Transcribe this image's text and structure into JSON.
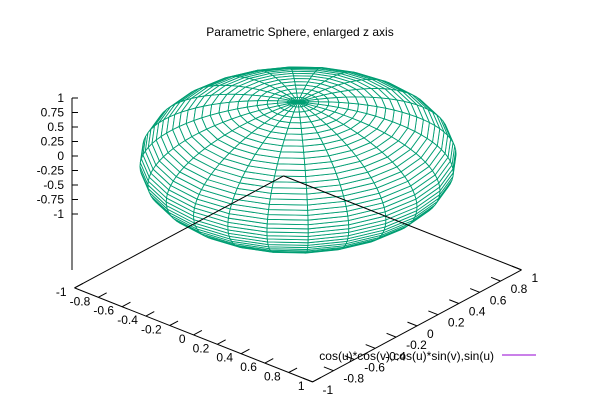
{
  "chart_data": {
    "type": "surface",
    "title": "Parametric Sphere, enlarged z axis",
    "legend": {
      "label": "cos(u)*cos(v),cos(u)*sin(v),sin(u)",
      "placement": "bottom-right",
      "color": "#9400d3"
    },
    "surface_color": "#009e73",
    "parametric": {
      "x": "cos(u)*cos(v)",
      "y": "cos(u)*sin(v)",
      "z": "sin(u)",
      "v_range_deg": [
        0,
        360
      ],
      "u_range_deg": [
        -90,
        90
      ]
    },
    "xlim": [
      -1,
      1
    ],
    "ylim": [
      -1,
      1
    ],
    "zlim": [
      -1,
      1
    ],
    "z_ticks": [
      "1",
      "0.75",
      "0.5",
      "0.25",
      "0",
      "-0.25",
      "-0.5",
      "-0.75",
      "-1"
    ],
    "y_ticks_left": [
      "-1",
      "-0.8",
      "-0.6",
      "-0.4",
      "-0.2",
      "0",
      "0.2",
      "0.4",
      "0.6",
      "0.8",
      "1"
    ],
    "x_ticks_right": [
      "-1",
      "-0.8",
      "-0.6",
      "-0.4",
      "-0.2",
      "0",
      "0.2",
      "0.4",
      "0.6",
      "0.8",
      "1"
    ],
    "grid": false
  }
}
